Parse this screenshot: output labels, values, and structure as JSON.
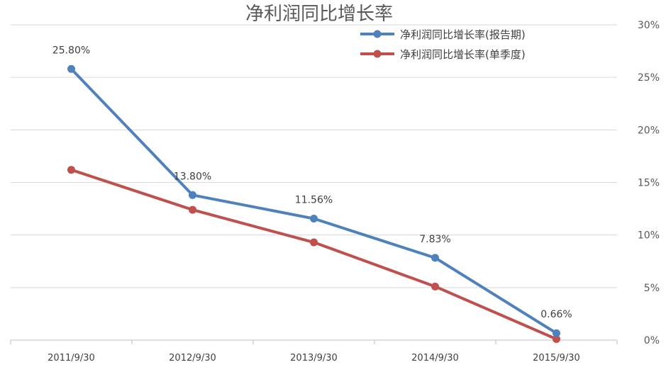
{
  "chart_data": {
    "type": "line",
    "title": "净利润同比增长率",
    "categories": [
      "2011/9/30",
      "2012/9/30",
      "2013/9/30",
      "2014/9/30",
      "2015/9/30"
    ],
    "series": [
      {
        "name": "净利润同比增长率(报告期)",
        "color": "#4f81bd",
        "values": [
          25.8,
          13.8,
          11.56,
          7.83,
          0.66
        ],
        "data_labels": [
          "25.80%",
          "13.80%",
          "11.56%",
          "7.83%",
          "0.66%"
        ]
      },
      {
        "name": "净利润同比增长率(单季度)",
        "color": "#c0504d",
        "values": [
          16.2,
          12.4,
          9.3,
          5.1,
          0.1
        ]
      }
    ],
    "y_ticks": [
      "0%",
      "5%",
      "10%",
      "15%",
      "20%",
      "25%",
      "30%"
    ],
    "ylim": [
      0,
      30
    ],
    "y_axis_side": "right",
    "grid": true,
    "legend_position": "top-right"
  }
}
